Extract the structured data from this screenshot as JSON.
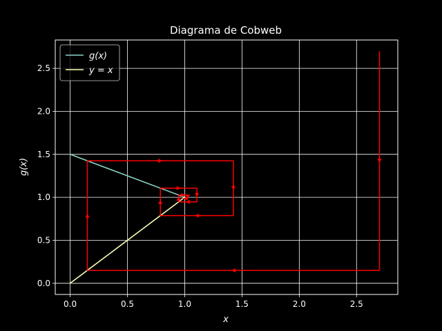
{
  "chart_data": {
    "type": "line",
    "title": "Diagrama de Cobweb",
    "xlabel": "x",
    "ylabel": "g(x)",
    "xlim": [
      -0.13,
      2.86
    ],
    "ylim": [
      -0.13,
      2.83
    ],
    "xticks": [
      0.0,
      0.5,
      1.0,
      1.5,
      2.0,
      2.5
    ],
    "xtick_labels": [
      "0.0",
      "0.5",
      "1.0",
      "1.5",
      "2.0",
      "2.5"
    ],
    "yticks": [
      0.0,
      0.5,
      1.0,
      1.5,
      2.0,
      2.5
    ],
    "ytick_labels": [
      "0.0",
      "0.5",
      "1.0",
      "1.5",
      "2.0",
      "2.5"
    ],
    "grid": true,
    "legend": {
      "placement": "top-left",
      "entries": [
        {
          "label": "g(x)",
          "color": "#8dd3c7"
        },
        {
          "label": "y = x",
          "color": "#feffb3"
        }
      ]
    },
    "series": [
      {
        "name": "g(x)",
        "color": "#8dd3c7",
        "x": [
          0.0,
          1.0
        ],
        "y": [
          1.5,
          1.0
        ]
      },
      {
        "name": "y = x",
        "color": "#feffb3",
        "x": [
          0.0,
          1.0
        ],
        "y": [
          0.0,
          1.0
        ]
      }
    ],
    "cobweb": {
      "color": "#ff0000",
      "points": [
        [
          2.7,
          2.7
        ],
        [
          2.7,
          0.15
        ],
        [
          0.15,
          0.15
        ],
        [
          0.15,
          1.425
        ],
        [
          1.425,
          1.425
        ],
        [
          1.425,
          0.7875
        ],
        [
          0.7875,
          0.7875
        ],
        [
          0.7875,
          1.10625
        ],
        [
          1.10625,
          1.10625
        ],
        [
          1.10625,
          0.946875
        ],
        [
          0.946875,
          0.946875
        ],
        [
          0.946875,
          1.0265625
        ],
        [
          1.0265625,
          1.0265625
        ],
        [
          1.0265625,
          0.98671875
        ],
        [
          0.98671875,
          0.98671875
        ]
      ]
    }
  }
}
